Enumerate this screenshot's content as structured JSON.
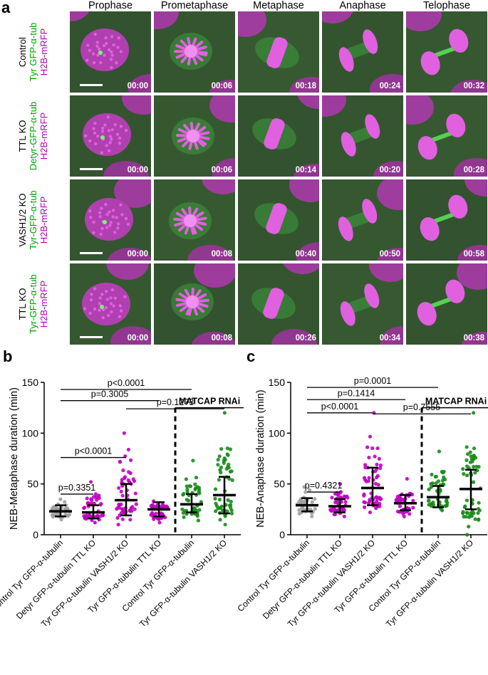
{
  "panel_a": {
    "letter": "a",
    "stages": [
      "Prophase",
      "Prometaphase",
      "Metaphase",
      "Anaphase",
      "Telophase"
    ],
    "rows": [
      {
        "line1": "Control",
        "line2": "Tyr GFP-α-tub",
        "line3": "H2B-mRFP",
        "times": [
          "00:00",
          "00:06",
          "00:18",
          "00:24",
          "00:32"
        ]
      },
      {
        "line1": "TTL KO",
        "line2": "Detyr-GFP-α-tub",
        "line3": "H2B-mRFP",
        "times": [
          "00:00",
          "00:06",
          "00:14",
          "00:20",
          "00:28"
        ]
      },
      {
        "line1": "VASH1/2 KO",
        "line2": "Tyr-GFP-α-tub",
        "line3": "H2B-mRFP",
        "times": [
          "00:00",
          "00:08",
          "00:40",
          "00:50",
          "00:58"
        ]
      },
      {
        "line1": "TTL KO",
        "line2": "Tyr-GFP-α-tub",
        "line3": "H2B-mRFP",
        "times": [
          "00:00",
          "00:08",
          "00:26",
          "00:34",
          "00:38"
        ]
      }
    ]
  },
  "chart_data": [
    {
      "panel": "b",
      "type": "scatter",
      "ylabel": "NEB-Metaphase duration (min)",
      "ylim": [
        0,
        150
      ],
      "yticks": [
        0,
        50,
        100,
        150
      ],
      "categories": [
        "Control Tyr GFP-α-tubulin",
        "Detyr GFP-α-tubulin TTL KO",
        "Tyr GFP-α-tubulin VASH1/2 KO",
        "Tyr GFP-α-tubulin TTL KO",
        "Control Tyr GFP-α-tubulin",
        "Tyr GFP-α-tubulin VASH1/2 KO"
      ],
      "point_colors": [
        "#a0a0a0",
        "#c000c0",
        "#c000c0",
        "#c000c0",
        "#1a8a1a",
        "#1a8a1a"
      ],
      "mean": [
        23,
        22,
        34,
        25,
        30,
        39
      ],
      "sd_low": [
        18,
        16,
        19,
        18,
        22,
        21
      ],
      "sd_high": [
        29,
        29,
        50,
        32,
        40,
        57
      ],
      "point_range_min": [
        15,
        12,
        10,
        12,
        14,
        10
      ],
      "point_range_max": [
        35,
        52,
        100,
        33,
        73,
        120
      ],
      "group_label": "MATCAP RNAi",
      "comparisons": [
        {
          "from": 0,
          "to": 1,
          "label": "p=0.3351",
          "y": 40
        },
        {
          "from": 0,
          "to": 2,
          "label": "p<0.0001",
          "y": 76
        },
        {
          "from": 2,
          "to": 5,
          "label": "p=0.1273",
          "y": 124
        },
        {
          "from": 0,
          "to": 3,
          "label": "p=0.3005",
          "y": 132
        },
        {
          "from": 0,
          "to": 4,
          "label": "p<0.0001",
          "y": 143
        }
      ]
    },
    {
      "panel": "c",
      "type": "scatter",
      "ylabel": "NEB-Anaphase duration (min)",
      "ylim": [
        0,
        150
      ],
      "yticks": [
        0,
        50,
        100,
        150
      ],
      "categories": [
        "Control Tyr GFP-α-tubulin",
        "Detyr GFP-α-tubulin TTL KO",
        "Tyr GFP-α-tubulin VASH1/2 KO",
        "Tyr GFP-α-tubulin TTL KO",
        "Control Tyr GFP-α-tubulin",
        "Tyr GFP-α-tubulin VASH1/2 KO"
      ],
      "point_colors": [
        "#a0a0a0",
        "#c000c0",
        "#c000c0",
        "#c000c0",
        "#1a8a1a",
        "#1a8a1a"
      ],
      "mean": [
        29,
        28,
        46,
        31,
        37,
        45
      ],
      "sd_low": [
        23,
        22,
        29,
        24,
        27,
        25
      ],
      "sd_high": [
        36,
        35,
        66,
        39,
        48,
        64
      ],
      "point_range_min": [
        18,
        18,
        22,
        18,
        24,
        0
      ],
      "point_range_max": [
        47,
        50,
        120,
        55,
        82,
        120
      ],
      "group_label": "MATCAP RNAi",
      "comparisons": [
        {
          "from": 0,
          "to": 1,
          "label": "p=0.4321",
          "y": 42
        },
        {
          "from": 2,
          "to": 5,
          "label": "p=0.7555",
          "y": 119
        },
        {
          "from": 0,
          "to": 2,
          "label": "p<0.0001",
          "y": 120
        },
        {
          "from": 0,
          "to": 3,
          "label": "p=0.1414",
          "y": 133
        },
        {
          "from": 0,
          "to": 4,
          "label": "p=0.0001",
          "y": 145
        }
      ]
    }
  ]
}
